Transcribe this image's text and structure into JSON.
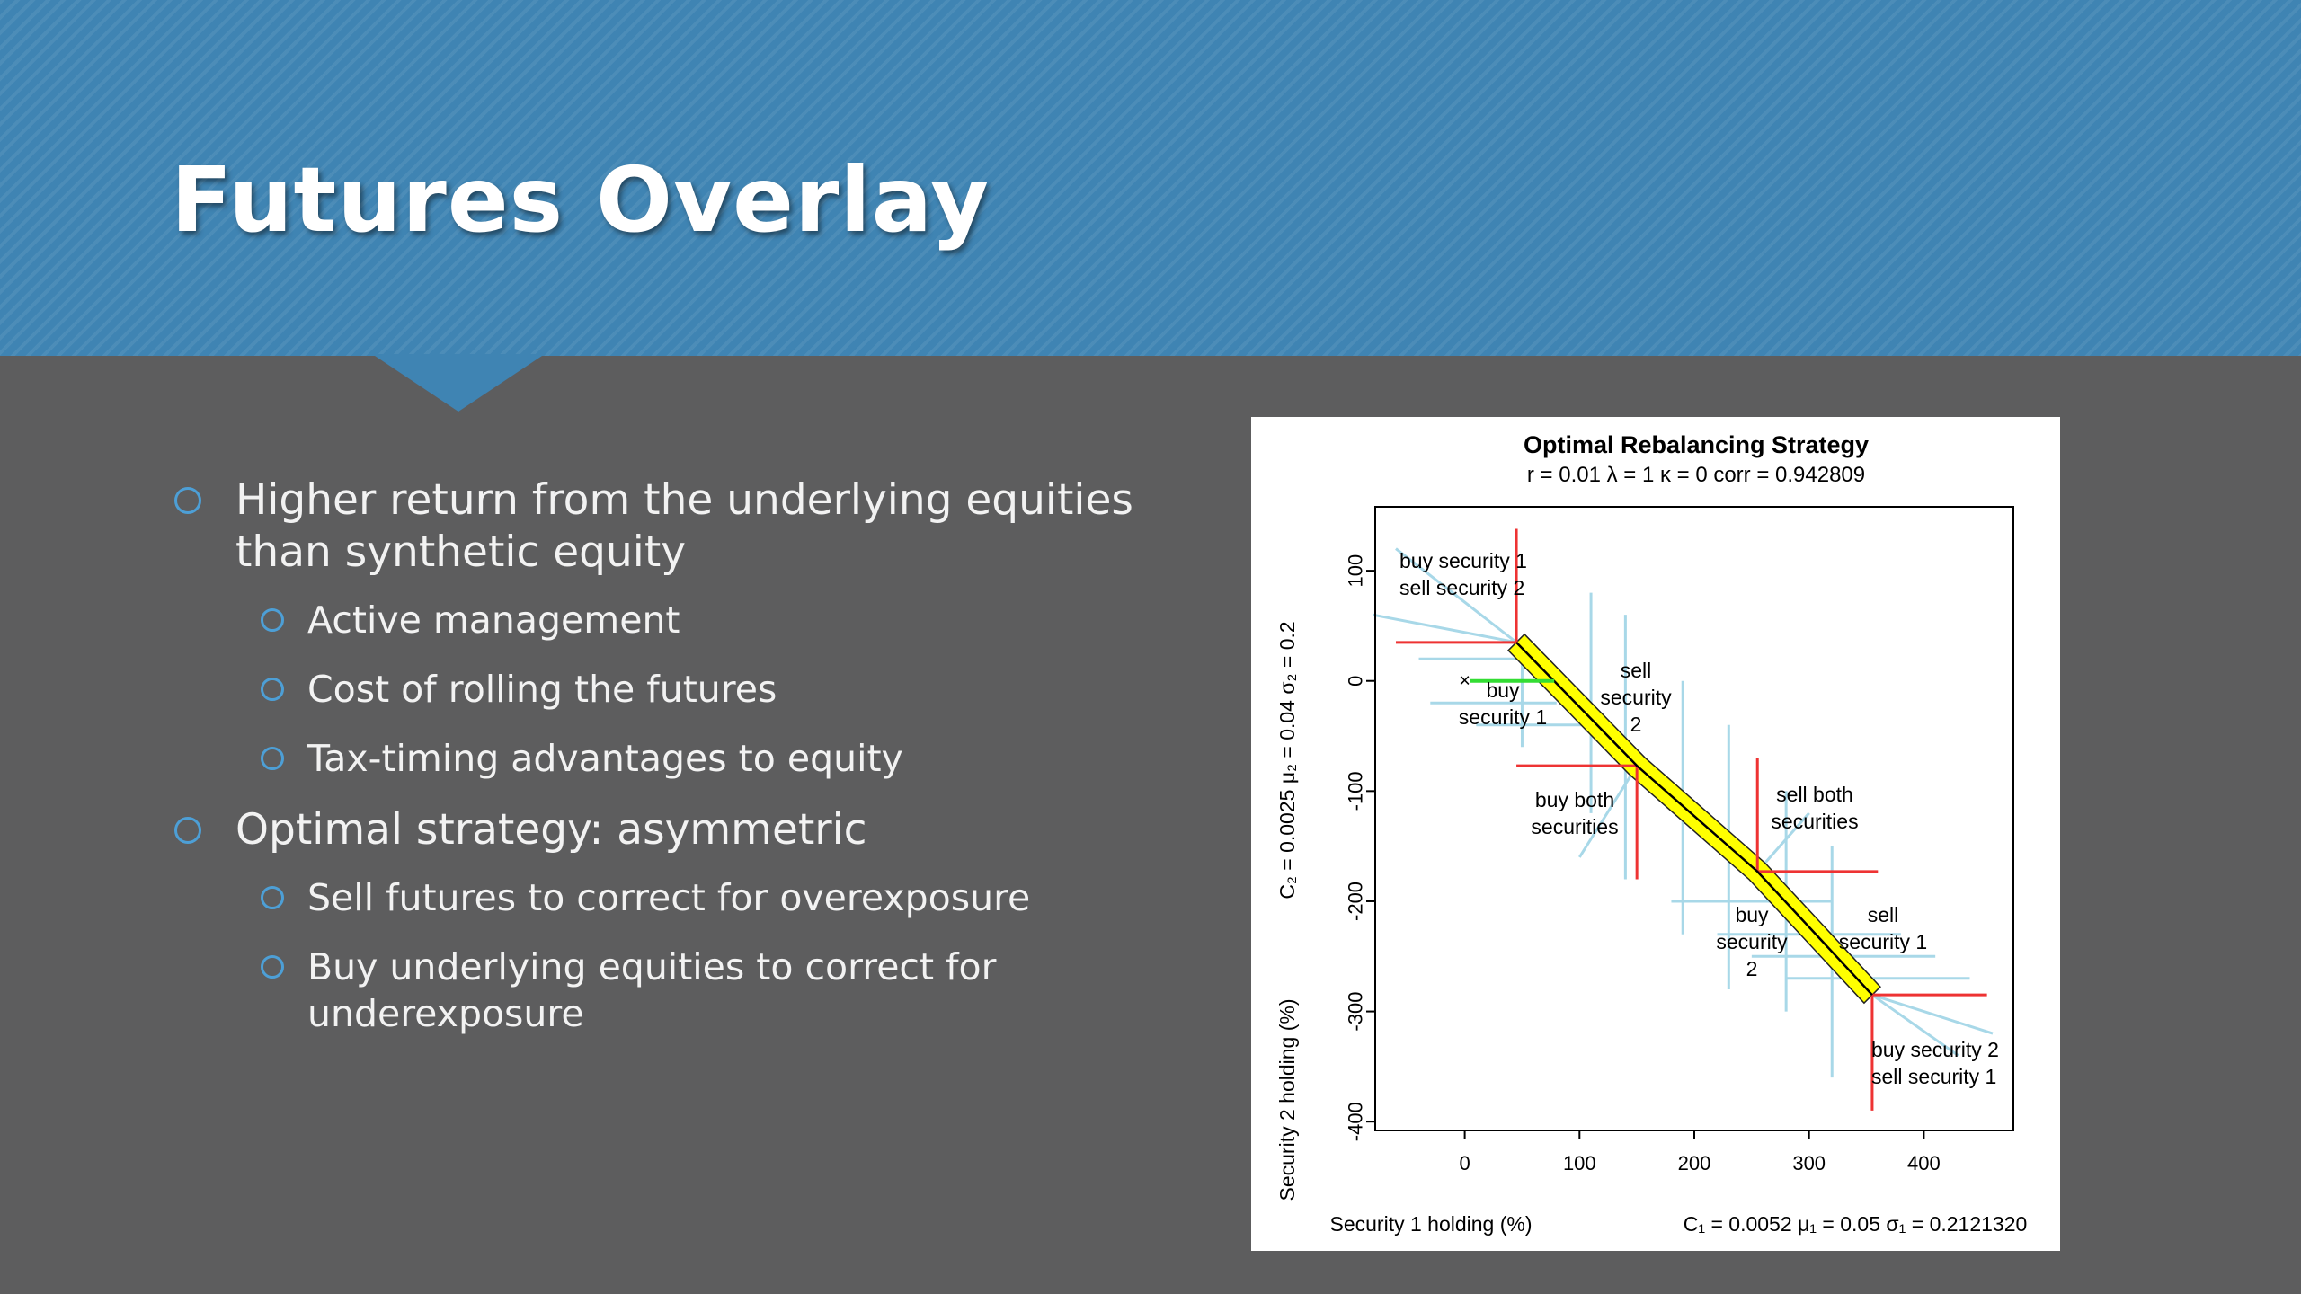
{
  "slide": {
    "title": "Futures Overlay",
    "colors": {
      "header": "#3f84b3",
      "background": "#5d5d5e",
      "bullet": "#4d9fd6",
      "text": "#f2f2f2"
    }
  },
  "bullets": [
    {
      "level": 1,
      "text": "Higher return from the underlying equities",
      "text2": "than synthetic equity"
    },
    {
      "level": 2,
      "text": "Active management"
    },
    {
      "level": 2,
      "text": "Cost of rolling the futures"
    },
    {
      "level": 2,
      "text": "Tax-timing advantages to equity"
    },
    {
      "level": 1,
      "text": "Optimal strategy: asymmetric"
    },
    {
      "level": 2,
      "text": "Sell futures to correct for overexposure"
    },
    {
      "level": 2,
      "text": "Buy underlying equities to correct for",
      "text2": "underexposure"
    }
  ],
  "chart_data": {
    "type": "line",
    "title": "Optimal Rebalancing Strategy",
    "subtitle": "r = 0.01    λ = 1    κ = 0    corr = 0.942809",
    "xlabel": "Security 1 holding (%)",
    "xparams": "C₁ = 0.0052   μ₁ = 0.05   σ₁ = 0.2121320",
    "ylabel": "Security 2 holding (%)",
    "yparams": "C₂ = 0.0025   μ₂ = 0.04   σ₂ = 0.2",
    "xlim": [
      -78,
      478
    ],
    "ylim": [
      -408,
      158
    ],
    "xticks": [
      "0",
      "100",
      "200",
      "300",
      "400"
    ],
    "yticks": [
      "100",
      "0",
      "-100",
      "-200",
      "-300",
      "-400"
    ],
    "grid": false,
    "series": [
      {
        "color": "#000000",
        "x": [
          45,
          150,
          255,
          355
        ],
        "y": [
          35,
          -77,
          -173,
          -285
        ]
      }
    ],
    "regions": [
      {
        "x": 45,
        "y": 35,
        "color": "#ee3333",
        "label": [
          "buy security 1",
          "sell security 2"
        ]
      },
      {
        "x": 150,
        "y": -77,
        "color": "#ee3333",
        "label": [
          "buy both",
          "securities"
        ]
      },
      {
        "x": 255,
        "y": -173,
        "color": "#ee3333",
        "label": [
          "sell both",
          "securities"
        ]
      },
      {
        "x": 355,
        "y": -285,
        "color": "#ee3333",
        "label": [
          "buy security 2",
          "sell security 1"
        ]
      }
    ],
    "annotations": [
      {
        "label": [
          "buy",
          "security 1"
        ]
      },
      {
        "label": [
          "sell",
          "security",
          "2"
        ]
      },
      {
        "label": [
          "buy",
          "security",
          "2"
        ]
      },
      {
        "label": [
          "sell",
          "security 1"
        ]
      }
    ],
    "band_color": "#ffff00",
    "arrow_color": "#a8d8e8",
    "marker": {
      "x": 0,
      "y": 0,
      "symbol": "×"
    },
    "green_segment": {
      "x": [
        5,
        78
      ],
      "y": [
        0,
        0
      ],
      "color": "#33dd33"
    }
  }
}
